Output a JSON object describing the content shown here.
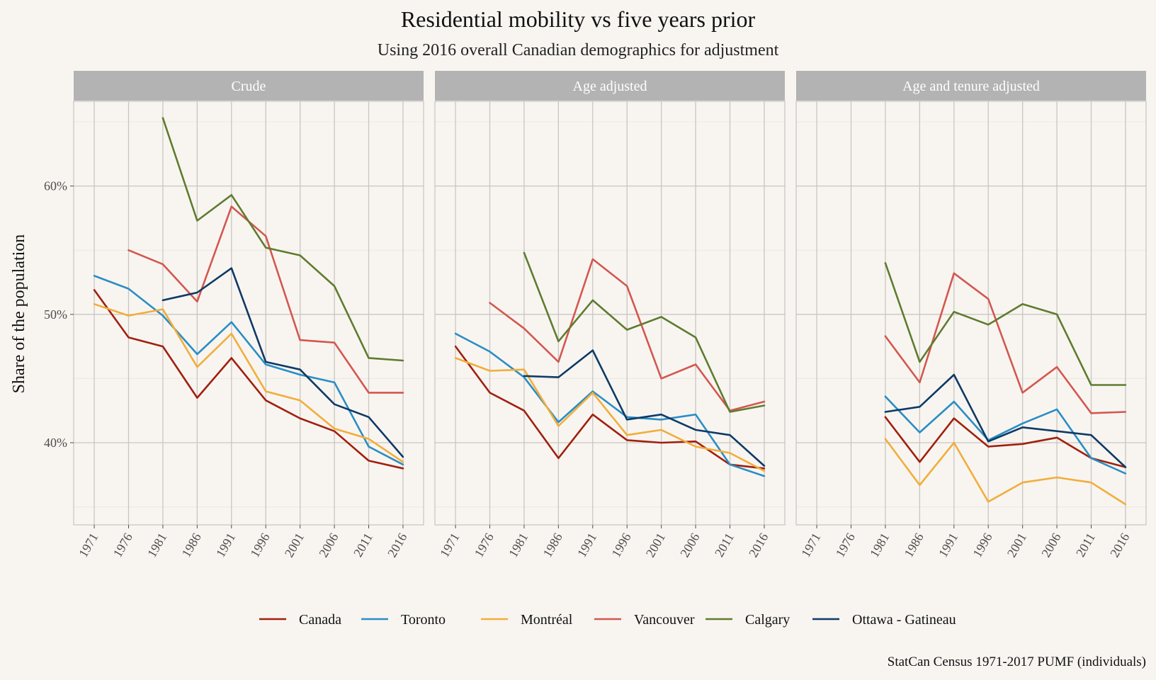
{
  "chart_data": {
    "type": "line",
    "title": "Residential mobility vs five years prior",
    "subtitle": "Using 2016 overall Canadian demographics for adjustment",
    "ylabel": "Share of the population",
    "xlabel": "",
    "caption": "StatCan Census 1971-2017 PUMF (individuals)",
    "x": [
      1971,
      1976,
      1981,
      1986,
      1991,
      1996,
      2001,
      2006,
      2011,
      2016
    ],
    "xlim": [
      1968,
      2019
    ],
    "ylim": [
      0.336,
      0.666
    ],
    "yticks": [
      0.4,
      0.5,
      0.6
    ],
    "ytick_labels": [
      "40%",
      "50%",
      "60%"
    ],
    "grid": true,
    "legend_position": "bottom",
    "series_meta": [
      {
        "name": "Canada",
        "color": "#a0200e"
      },
      {
        "name": "Toronto",
        "color": "#2a8ec4"
      },
      {
        "name": "Montréal",
        "color": "#f2ad3a"
      },
      {
        "name": "Vancouver",
        "color": "#d4574f"
      },
      {
        "name": "Calgary",
        "color": "#5e7c2e"
      },
      {
        "name": "Ottawa - Gatineau",
        "color": "#0e3a66"
      }
    ],
    "panels": [
      {
        "label": "Crude",
        "series": [
          {
            "name": "Canada",
            "values": [
              0.519,
              0.482,
              0.475,
              0.435,
              0.466,
              0.433,
              0.419,
              0.409,
              0.386,
              0.38
            ]
          },
          {
            "name": "Toronto",
            "values": [
              0.53,
              0.52,
              0.499,
              0.469,
              0.494,
              0.461,
              0.453,
              0.447,
              0.397,
              0.383
            ]
          },
          {
            "name": "Montréal",
            "values": [
              0.508,
              0.499,
              0.504,
              0.459,
              0.485,
              0.44,
              0.433,
              0.411,
              0.403,
              0.385
            ]
          },
          {
            "name": "Vancouver",
            "values": [
              null,
              0.55,
              0.539,
              0.51,
              0.584,
              0.561,
              0.48,
              0.478,
              0.439,
              0.439
            ]
          },
          {
            "name": "Calgary",
            "values": [
              null,
              null,
              0.653,
              0.573,
              0.593,
              0.552,
              0.546,
              0.522,
              0.466,
              0.464
            ]
          },
          {
            "name": "Ottawa - Gatineau",
            "values": [
              null,
              null,
              0.511,
              0.517,
              0.536,
              0.463,
              0.457,
              0.43,
              0.42,
              0.389
            ]
          }
        ]
      },
      {
        "label": "Age adjusted",
        "series": [
          {
            "name": "Canada",
            "values": [
              0.475,
              0.439,
              0.425,
              0.388,
              0.422,
              0.402,
              0.4,
              0.401,
              0.383,
              0.38
            ]
          },
          {
            "name": "Toronto",
            "values": [
              0.485,
              0.471,
              0.451,
              0.416,
              0.44,
              0.42,
              0.418,
              0.422,
              0.383,
              0.374
            ]
          },
          {
            "name": "Montréal",
            "values": [
              0.466,
              0.456,
              0.457,
              0.413,
              0.439,
              0.406,
              0.41,
              0.397,
              0.392,
              0.378
            ]
          },
          {
            "name": "Vancouver",
            "values": [
              null,
              0.509,
              0.489,
              0.463,
              0.543,
              0.522,
              0.45,
              0.461,
              0.425,
              0.432
            ]
          },
          {
            "name": "Calgary",
            "values": [
              null,
              null,
              0.548,
              0.479,
              0.511,
              0.488,
              0.498,
              0.482,
              0.424,
              0.429
            ]
          },
          {
            "name": "Ottawa - Gatineau",
            "values": [
              null,
              null,
              0.452,
              0.451,
              0.472,
              0.418,
              0.422,
              0.41,
              0.406,
              0.382
            ]
          }
        ]
      },
      {
        "label": "Age and tenure adjusted",
        "series": [
          {
            "name": "Canada",
            "values": [
              null,
              null,
              0.42,
              0.385,
              0.419,
              0.397,
              0.399,
              0.404,
              0.388,
              0.381
            ]
          },
          {
            "name": "Toronto",
            "values": [
              null,
              null,
              0.436,
              0.408,
              0.432,
              0.402,
              0.415,
              0.426,
              0.388,
              0.376
            ]
          },
          {
            "name": "Montréal",
            "values": [
              null,
              null,
              0.403,
              0.367,
              0.4,
              0.354,
              0.369,
              0.373,
              0.369,
              0.352
            ]
          },
          {
            "name": "Vancouver",
            "values": [
              null,
              null,
              0.483,
              0.447,
              0.532,
              0.512,
              0.439,
              0.459,
              0.423,
              0.424
            ]
          },
          {
            "name": "Calgary",
            "values": [
              null,
              null,
              0.54,
              0.463,
              0.502,
              0.492,
              0.508,
              0.5,
              0.445,
              0.445
            ]
          },
          {
            "name": "Ottawa - Gatineau",
            "values": [
              null,
              null,
              0.424,
              0.428,
              0.453,
              0.401,
              0.412,
              0.409,
              0.406,
              0.381
            ]
          }
        ]
      }
    ]
  }
}
